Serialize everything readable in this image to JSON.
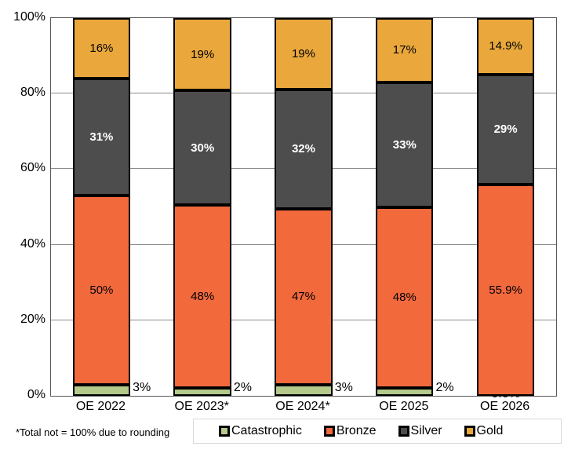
{
  "chart_data": {
    "type": "bar",
    "stacked": true,
    "title": "",
    "xlabel": "",
    "ylabel": "",
    "ylim": [
      0,
      100
    ],
    "grid": true,
    "legend_position": "bottom",
    "footnote": "*Total not = 100% due to rounding",
    "categories": [
      "OE 2022",
      "OE 2023*",
      "OE 2024*",
      "OE 2025",
      "OE 2026"
    ],
    "ytick_labels": [
      "0%",
      "20%",
      "40%",
      "60%",
      "80%",
      "100%"
    ],
    "series": [
      {
        "name": "Catastrophic",
        "color": "#B5C98B",
        "values": [
          3,
          2,
          3,
          2,
          0
        ],
        "labels": [
          "3%",
          "2%",
          "3%",
          "2%",
          "0.0%"
        ]
      },
      {
        "name": "Bronze",
        "color": "#F2693C",
        "values": [
          50,
          48,
          47,
          48,
          55.9
        ],
        "labels": [
          "50%",
          "48%",
          "47%",
          "48%",
          "55.9%"
        ]
      },
      {
        "name": "Silver",
        "color": "#4D4D4D",
        "values": [
          31,
          30,
          32,
          33,
          29
        ],
        "labels": [
          "31%",
          "30%",
          "32%",
          "33%",
          "29%"
        ]
      },
      {
        "name": "Gold",
        "color": "#EAA83C",
        "values": [
          16,
          19,
          19,
          17,
          14.9
        ],
        "labels": [
          "16%",
          "19%",
          "19%",
          "17%",
          "14.9%"
        ]
      }
    ]
  }
}
